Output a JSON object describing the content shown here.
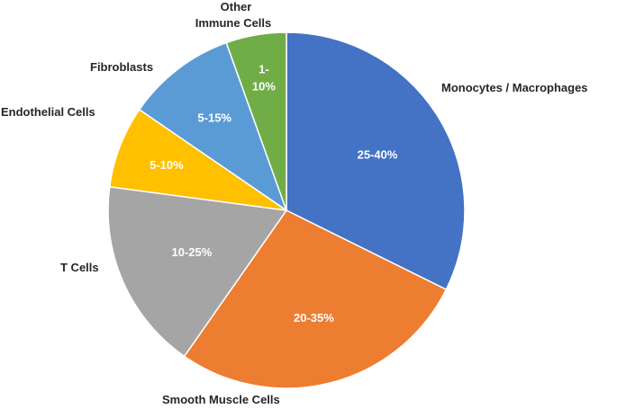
{
  "chart_data": {
    "type": "pie",
    "title": "",
    "legend": "none",
    "slices": [
      {
        "category": "Monocytes / Macrophages",
        "label": "25-40%",
        "value": 32.5,
        "color": "#4472C4"
      },
      {
        "category": "Smooth Muscle Cells",
        "label": "20-35%",
        "value": 27.5,
        "color": "#ED7D31"
      },
      {
        "category": "T Cells",
        "label": "10-25%",
        "value": 17.5,
        "color": "#A5A5A5"
      },
      {
        "category": "Endothelial Cells",
        "label": "5-10%",
        "value": 7.5,
        "color": "#FFC000"
      },
      {
        "category": "Fibroblasts",
        "label": "5-15%",
        "value": 10,
        "color": "#5B9BD5"
      },
      {
        "category": "Other Immune Cells",
        "label": "1-10%",
        "value": 5.5,
        "color": "#70AD47"
      }
    ]
  }
}
